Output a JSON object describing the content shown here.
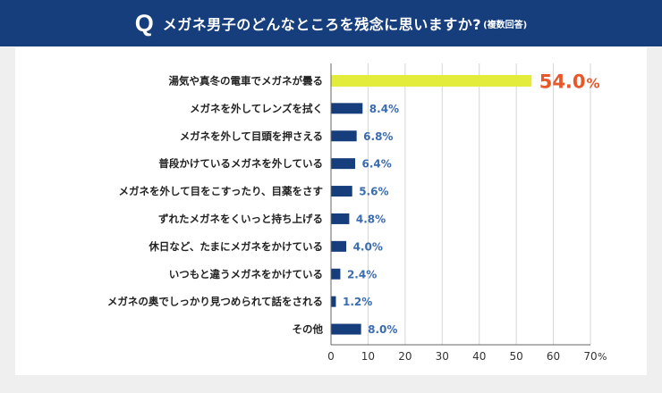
{
  "header": {
    "q_mark": "Q",
    "title": "メガネ男子のどんなところを残念に思いますか?",
    "subtitle": "(複数回答)"
  },
  "colors": {
    "header_bg": "#163e7c",
    "bar": "#163e7c",
    "highlight_bar": "#e3ec3b",
    "highlight_label": "#e8572a",
    "value_label": "#3a6cb0"
  },
  "chart_data": {
    "type": "bar",
    "orientation": "horizontal",
    "categories": [
      "湯気や真冬の電車でメガネが曇る",
      "メガネを外してレンズを拭く",
      "メガネを外して目頭を押さえる",
      "普段かけているメガネを外している",
      "メガネを外して目をこすったり、目薬をさす",
      "ずれたメガネをくいっと持ち上げる",
      "休日など、たまにメガネをかけている",
      "いつもと違うメガネをかけている",
      "メガネの奥でしっかり見つめられて話をされる",
      "その他"
    ],
    "values": [
      54.0,
      8.4,
      6.8,
      6.4,
      5.6,
      4.8,
      4.0,
      2.4,
      1.2,
      8.0
    ],
    "value_labels": [
      "54.0",
      "8.4%",
      "6.8%",
      "6.4%",
      "5.6%",
      "4.8%",
      "4.0%",
      "2.4%",
      "1.2%",
      "8.0%"
    ],
    "highlight_unit": "%",
    "highlight_index": 0,
    "xlim": [
      0,
      70
    ],
    "x_ticks": [
      "0",
      "10",
      "20",
      "30",
      "40",
      "50",
      "60",
      "70"
    ],
    "x_unit": "%",
    "grid": true,
    "title": "",
    "xlabel": "",
    "ylabel": ""
  }
}
